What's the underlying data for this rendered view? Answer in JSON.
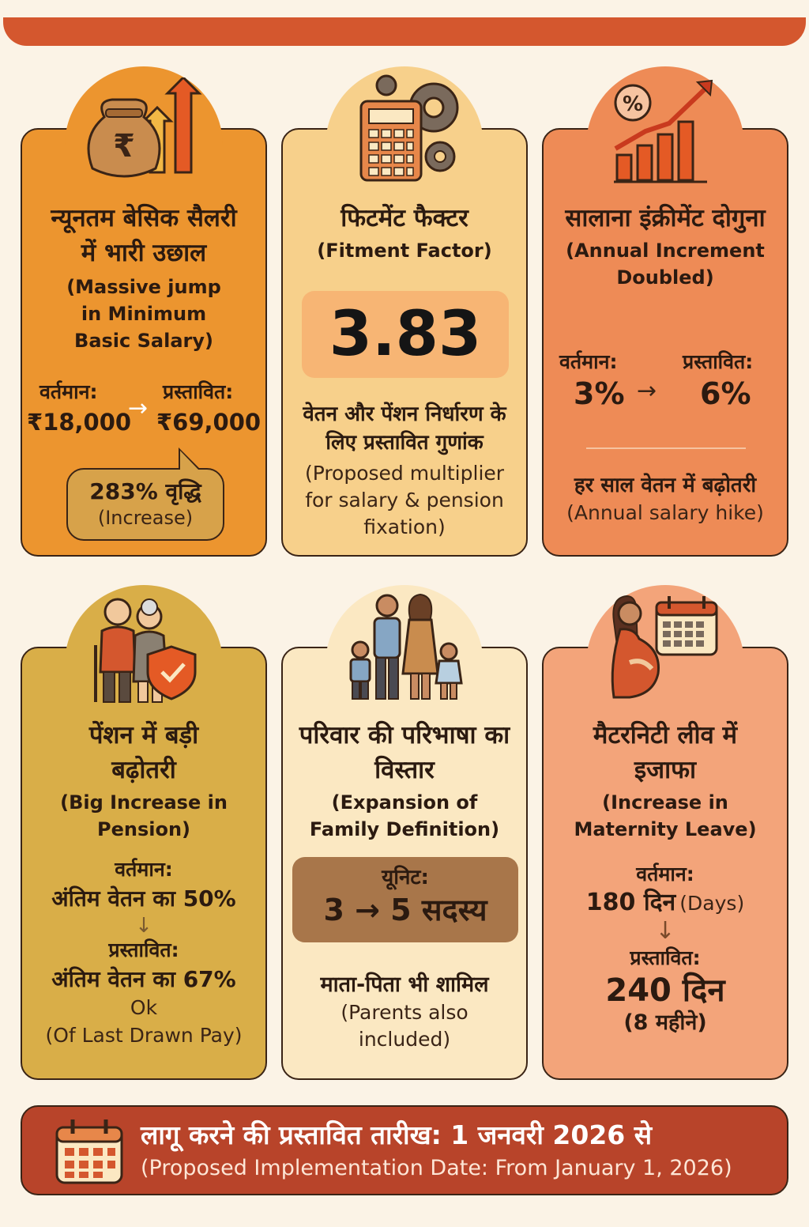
{
  "cards": {
    "salary": {
      "title_hi": "न्यूनतम बेसिक सैलरी में भारी उछाल",
      "title_en": "(Massive jump in Minimum Basic Salary)",
      "current_label": "वर्तमान:",
      "current_value": "₹18,000",
      "proposed_label": "प्रस्तावित:",
      "proposed_value": "₹69,000",
      "arrow": "→",
      "increase_hi": "283% वृद्धि",
      "increase_en": "(Increase)",
      "icon": "money-bag-growth-icon",
      "rupee": "₹"
    },
    "fitment": {
      "title_hi": "फिटमेंट फैक्टर",
      "title_en": "(Fitment Factor)",
      "value": "3.83",
      "desc_hi": "वेतन और पेंशन निर्धारण के लिए प्रस्तावित गुणांक",
      "desc_en": "(Proposed multiplier for salary & pension fixation)",
      "icon": "calculator-gears-icon"
    },
    "increment": {
      "title_hi": "सालाना इंक्रीमेंट दोगुना",
      "title_en": "(Annual Increment Doubled)",
      "current_label": "वर्तमान:",
      "current_value": "3%",
      "proposed_label": "प्रस्तावित:",
      "proposed_value": "6%",
      "arrow": "→",
      "note_hi": "हर साल वेतन में बढ़ोतरी",
      "note_en": "(Annual salary hike)",
      "icon": "percent-bar-chart-icon",
      "percent": "%"
    },
    "pension": {
      "title_hi": "पेंशन में बड़ी बढ़ोतरी",
      "title_en": "(Big Increase in Pension)",
      "current_label": "वर्तमान:",
      "current_value": "अंतिम वेतन का 50%",
      "arrow": "↓",
      "proposed_label": "प्रस्तावित:",
      "proposed_value": "अंतिम वेतन का 67%",
      "ok": "Ok",
      "note_en": "(Of Last Drawn Pay)",
      "icon": "elderly-couple-shield-icon"
    },
    "family": {
      "title_hi": "परिवार की परिभाषा का विस्तार",
      "title_en": "(Expansion of Family Definition)",
      "unit_label": "यूनिट:",
      "unit_value": "3 → 5 सदस्य",
      "note_hi": "माता-पिता भी शामिल",
      "note_en": "(Parents also included)",
      "icon": "family-icon"
    },
    "maternity": {
      "title_hi": "मैटरनिटी लीव में इजाफा",
      "title_en": "(Increase in Maternity Leave)",
      "current_label": "वर्तमान:",
      "current_value_hi": "180 दिन",
      "current_value_en": "(Days)",
      "arrow": "↓",
      "proposed_label": "प्रस्तावित:",
      "proposed_value": "240 दिन",
      "proposed_note": "(8 महीने)",
      "icon": "pregnant-woman-calendar-icon"
    }
  },
  "footer": {
    "title_hi": "लागू करने की प्रस्तावित तारीख: 1 जनवरी 2026 से",
    "title_en": "(Proposed Implementation Date: From January 1, 2026)",
    "icon": "calendar-icon"
  },
  "colors": {
    "salary_card": "#ec952f",
    "fitment_card": "#f7d08b",
    "increment_card": "#ee8b56",
    "pension_card": "#d9ae48",
    "family_card": "#fbe8c2",
    "maternity_card": "#f3a47a",
    "footer": "#b8442a",
    "banner": "#d4572e"
  }
}
